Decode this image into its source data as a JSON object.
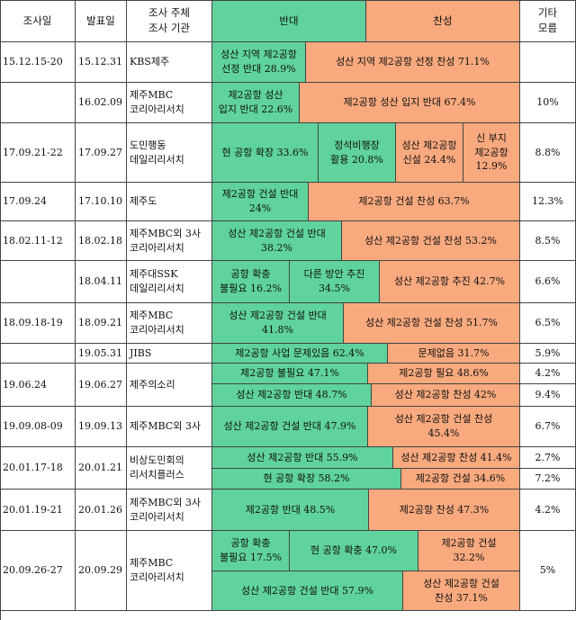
{
  "colors": {
    "oppose": "#5fd39b",
    "support": "#f8a97e",
    "border": "#444444"
  },
  "header": {
    "survey_date": "조사일",
    "pub_date": "발표일",
    "org": "조사 주체\n조사 기관",
    "oppose": "반대",
    "support": "찬성",
    "other": "기타\n모름"
  },
  "rows": {
    "r1": {
      "date": "15.12.15-20",
      "pub": "15.12.31",
      "org": "KBS제주",
      "seg": [
        "성산 지역 제2공항\n선정 반대 28.9%",
        "성산 지역 제2공항 선정 찬성 71.1%"
      ],
      "other": ""
    },
    "r2": {
      "date": "",
      "pub": "16.02.09",
      "org": "제주MBC\n코리아리서치",
      "seg": [
        "제2공항 성산\n입지 반대 22.6%",
        "제2공항 성산 입지 반대 67.4%"
      ],
      "other": "10%"
    },
    "r3": {
      "date": "17.09.21-22",
      "pub": "17.09.27",
      "org": "도민행동\n데일리리서치",
      "seg": [
        "현 공항 확장 33.6%",
        "정석비행장\n활용 20.8%",
        "성산 제2공항\n신설 24.4%",
        "신 부지\n제2공항\n12.9%"
      ],
      "other": "8.8%"
    },
    "r4": {
      "date": "17.09.24",
      "pub": "17.10.10",
      "org": "제주도",
      "seg": [
        "제2공항 건설 반대\n24%",
        "제2공항 건설 찬성 63.7%"
      ],
      "other": "12.3%"
    },
    "r5": {
      "date": "18.02.11-12",
      "pub": "18.02.18",
      "org": "제주MBC외 3사\n코리아리서치",
      "seg": [
        "성산 제2공항 건설 반대\n38.2%",
        "성산 제2공항 건설 찬성 53.2%"
      ],
      "other": "8.5%"
    },
    "r6": {
      "date": "",
      "pub": "18.04.11",
      "org": "제주대SSK\n데일리리서치",
      "seg": [
        "공항 확충\n불필요 16.2%",
        "다른 방안 추진\n34.5%",
        "성산 제2공항 추진 42.7%"
      ],
      "other": "6.6%"
    },
    "r7": {
      "date": "18.09.18-19",
      "pub": "18.09.21",
      "org": "제주MBC\n코리아리서치",
      "seg": [
        "성산 제2공항 건설 반대\n41.8%",
        "성산 제2공항 건설 찬성 51.7%"
      ],
      "other": "6.5%"
    },
    "r8": {
      "date": "",
      "pub": "19.05.31",
      "org": "JIBS",
      "seg": [
        "제2공항 사업 문제있음 62.4%",
        "문제없음 31.7%"
      ],
      "other": "5.9%"
    },
    "r9": {
      "date": "19.06.24",
      "pub": "19.06.27",
      "org": "제주의소리",
      "seg": [
        "제2공항 불필요 47.1%",
        "제2공항 필요 48.6%"
      ],
      "other": "4.2%"
    },
    "r10": {
      "seg": [
        "성산 제2공항 반대 48.7%",
        "성산 제2공항 찬성 42%"
      ],
      "other": "9.4%"
    },
    "r11": {
      "date": "19.09.08-09",
      "pub": "19.09.13",
      "org": "제주MBC외 3사",
      "seg": [
        "성산 제2공항 건설 반대 47.9%",
        "성산 제2공항 건설 찬성\n45.4%"
      ],
      "other": "6.7%"
    },
    "r12": {
      "date": "20.01.17-18",
      "pub": "20.01.21",
      "org": "비상도민회의\n리서치플러스",
      "seg": [
        "성산 제2공항 반대 55.9%",
        "성산 제2공항 찬성 41.4%"
      ],
      "other": "2.7%"
    },
    "r13": {
      "seg": [
        "현 공항 확장 58.2%",
        "제2공항 건설 34.6%"
      ],
      "other": "7.2%"
    },
    "r14": {
      "date": "20.01.19-21",
      "pub": "20.01.26",
      "org": "제주MBC외 3사\n코리아리서치",
      "seg": [
        "제2공항 반대 48.5%",
        "제2공항 찬성 47.3%"
      ],
      "other": "4.2%"
    },
    "r15": {
      "date": "20.09.26-27",
      "pub": "20.09.29",
      "org": "제주MBC\n코리아리서치",
      "seg": [
        "공항 확충\n불필요 17.5%",
        "현 공항 확충 47.0%",
        "제2공항 건설\n32.2%"
      ],
      "other": "5%"
    },
    "r16": {
      "seg": [
        "성산 제2공항 건설 반대 57.9%",
        "성산 제2공항 건설\n찬성 37.1%"
      ]
    }
  }
}
